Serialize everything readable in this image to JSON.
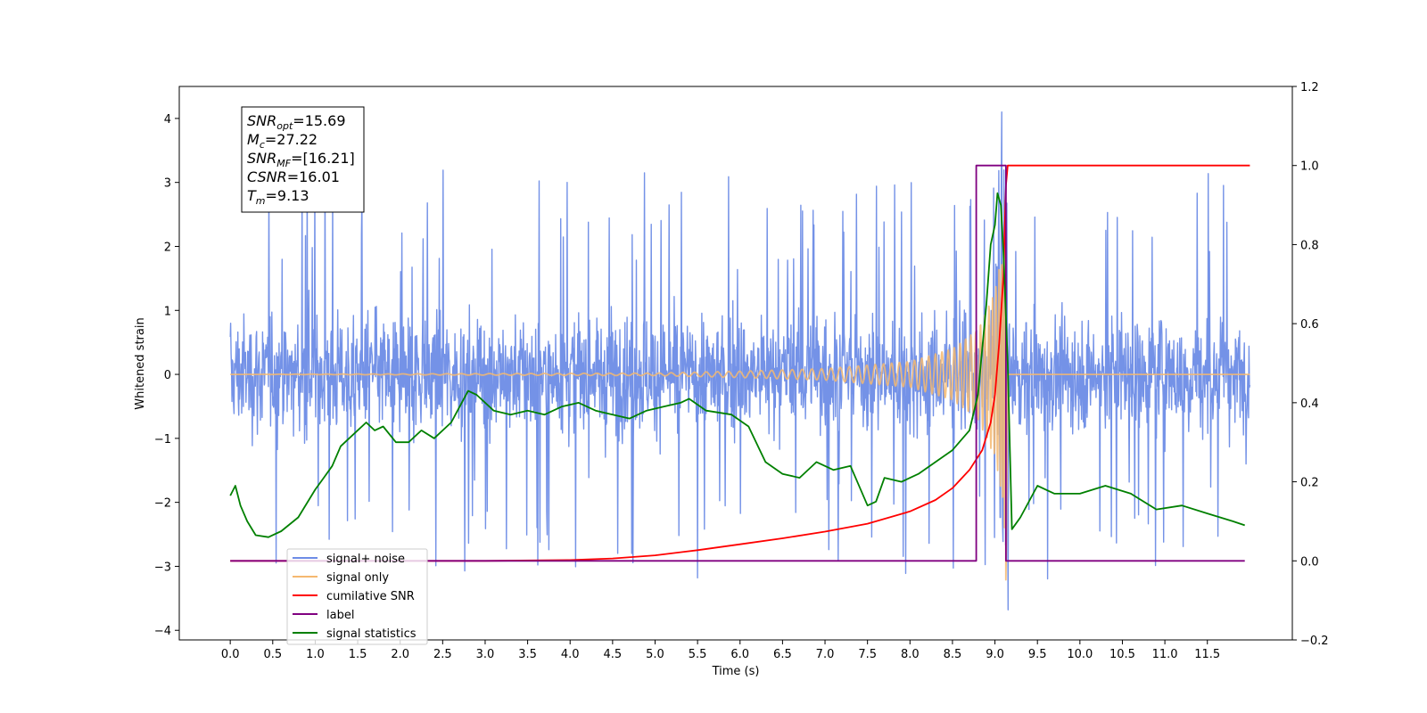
{
  "chart_data": {
    "type": "line",
    "xlabel": "Time (s)",
    "ylabel": "Whitened strain",
    "xlim": [
      -0.6,
      12.5
    ],
    "ylim": [
      -4.15,
      4.5
    ],
    "ylim_right": [
      -0.2,
      1.2
    ],
    "x_ticks": [
      0.0,
      0.5,
      1.0,
      1.5,
      2.0,
      2.5,
      3.0,
      3.5,
      4.0,
      4.5,
      5.0,
      5.5,
      6.0,
      6.5,
      7.0,
      7.5,
      8.0,
      8.5,
      9.0,
      9.5,
      10.0,
      10.5,
      11.0,
      11.5
    ],
    "x_tick_labels": [
      "0.0",
      "0.5",
      "1.0",
      "1.5",
      "2.0",
      "2.5",
      "3.0",
      "3.5",
      "4.0",
      "4.5",
      "5.0",
      "5.5",
      "6.0",
      "6.5",
      "7.0",
      "7.5",
      "8.0",
      "8.5",
      "9.0",
      "9.5",
      "10.0",
      "10.5",
      "11.0",
      "11.5"
    ],
    "y_ticks": [
      4,
      3,
      2,
      1,
      0,
      -1,
      -2,
      -3,
      -4
    ],
    "y_tick_labels": [
      "4",
      "3",
      "2",
      "1",
      "0",
      "−1",
      "−2",
      "−3",
      "−4"
    ],
    "y_ticks_right": [
      1.2,
      1.0,
      0.8,
      0.6,
      0.4,
      0.2,
      0.0,
      -0.2
    ],
    "y_tick_labels_right": [
      "1.2",
      "1.0",
      "0.8",
      "0.6",
      "0.4",
      "0.2",
      "0.0",
      "−0.2"
    ],
    "grid": false,
    "legend_position": "lower-left",
    "stats_box": [
      {
        "var": "SNR",
        "sub": "opt",
        "value": "=15.69"
      },
      {
        "var": "M",
        "sub": "c",
        "value": "=27.22"
      },
      {
        "var": "SNR",
        "sub": "MF",
        "value": "=[16.21]"
      },
      {
        "var": "CSNR",
        "sub": "",
        "value": "=16.01"
      },
      {
        "var": "T",
        "sub": "m",
        "value": "=9.13"
      }
    ],
    "series": [
      {
        "name": "signal+ noise",
        "color": "#6d8ce6",
        "axis": "left",
        "kind": "noise",
        "x_range": [
          0.0,
          12.0
        ],
        "envelope_typical": [
          -2.0,
          2.2
        ],
        "spike_max": 4.1,
        "spike_min": -3.7,
        "peak_time": 9.1
      },
      {
        "name": "signal only",
        "color": "#f5b870",
        "axis": "left",
        "kind": "chirp",
        "x_range": [
          0.0,
          12.0
        ],
        "amplitude_envelope": [
          [
            0.0,
            0.0
          ],
          [
            5.0,
            0.02
          ],
          [
            6.0,
            0.05
          ],
          [
            7.0,
            0.09
          ],
          [
            8.0,
            0.2
          ],
          [
            8.5,
            0.4
          ],
          [
            8.8,
            0.7
          ],
          [
            9.0,
            1.3
          ],
          [
            9.1,
            2.0
          ],
          [
            9.13,
            3.3
          ],
          [
            9.15,
            0.0
          ],
          [
            12.0,
            0.0
          ]
        ]
      },
      {
        "name": "cumilative SNR",
        "color": "#ff0000",
        "axis": "right",
        "x": [
          0.0,
          3.0,
          4.0,
          4.5,
          5.0,
          5.5,
          6.0,
          6.5,
          7.0,
          7.5,
          8.0,
          8.3,
          8.5,
          8.7,
          8.85,
          8.95,
          9.0,
          9.05,
          9.1,
          9.13,
          9.15,
          12.0
        ],
        "y": [
          0.0,
          0.0,
          0.002,
          0.006,
          0.014,
          0.027,
          0.042,
          0.057,
          0.074,
          0.094,
          0.125,
          0.154,
          0.184,
          0.23,
          0.28,
          0.35,
          0.42,
          0.55,
          0.72,
          0.95,
          1.0,
          1.0
        ]
      },
      {
        "name": "label",
        "color": "#800080",
        "axis": "right",
        "x": [
          0.0,
          8.78,
          8.78,
          9.13,
          9.13,
          11.94
        ],
        "y": [
          0.0,
          0.0,
          1.0,
          1.0,
          0.0,
          0.0
        ]
      },
      {
        "name": "signal statistics",
        "color": "#008000",
        "axis": "right",
        "x": [
          0.0,
          0.06,
          0.12,
          0.2,
          0.3,
          0.45,
          0.6,
          0.8,
          1.0,
          1.1,
          1.2,
          1.3,
          1.45,
          1.6,
          1.7,
          1.8,
          1.95,
          2.1,
          2.25,
          2.4,
          2.6,
          2.8,
          2.9,
          3.1,
          3.3,
          3.5,
          3.7,
          3.9,
          4.1,
          4.3,
          4.5,
          4.7,
          4.9,
          5.1,
          5.3,
          5.4,
          5.6,
          5.9,
          6.1,
          6.3,
          6.5,
          6.7,
          6.9,
          7.1,
          7.3,
          7.5,
          7.6,
          7.7,
          7.9,
          8.1,
          8.3,
          8.5,
          8.7,
          8.8,
          8.9,
          8.95,
          9.0,
          9.03,
          9.07,
          9.1,
          9.15,
          9.2,
          9.3,
          9.5,
          9.7,
          10.0,
          10.3,
          10.6,
          10.9,
          11.2,
          11.5,
          11.8,
          11.94
        ],
        "y": [
          0.165,
          0.19,
          0.14,
          0.1,
          0.065,
          0.06,
          0.075,
          0.11,
          0.18,
          0.21,
          0.24,
          0.29,
          0.32,
          0.35,
          0.33,
          0.34,
          0.3,
          0.3,
          0.33,
          0.31,
          0.35,
          0.43,
          0.42,
          0.38,
          0.37,
          0.38,
          0.37,
          0.39,
          0.4,
          0.38,
          0.37,
          0.36,
          0.38,
          0.39,
          0.4,
          0.41,
          0.38,
          0.37,
          0.34,
          0.25,
          0.22,
          0.21,
          0.25,
          0.23,
          0.24,
          0.14,
          0.15,
          0.21,
          0.2,
          0.22,
          0.25,
          0.28,
          0.33,
          0.42,
          0.65,
          0.8,
          0.85,
          0.93,
          0.9,
          0.78,
          0.5,
          0.08,
          0.11,
          0.19,
          0.17,
          0.17,
          0.19,
          0.17,
          0.13,
          0.14,
          0.12,
          0.1,
          0.09
        ]
      }
    ]
  }
}
